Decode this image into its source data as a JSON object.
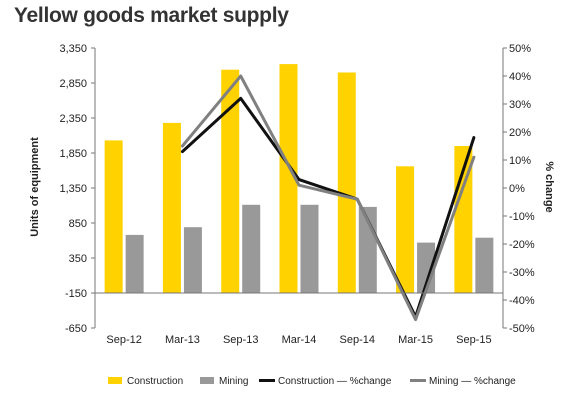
{
  "chart_data": {
    "type": "bar",
    "title": "Yellow goods market supply",
    "categories": [
      "Sep-12",
      "Mar-13",
      "Sep-13",
      "Mar-14",
      "Sep-14",
      "Mar-15",
      "Sep-15"
    ],
    "ylabel": "Units of equipment",
    "y2label": "% change",
    "ylim": [
      -650,
      3350
    ],
    "yticks": [
      "3,350",
      "2,850",
      "2,350",
      "1,850",
      "1,350",
      "850",
      "350",
      "-150",
      "-650"
    ],
    "y2lim": [
      -50,
      50
    ],
    "y2ticks": [
      "50%",
      "40%",
      "30%",
      "20%",
      "10%",
      "0%",
      "-10%",
      "-20%",
      "-30%",
      "-40%",
      "-50%"
    ],
    "grid": false,
    "legend_position": "bottom",
    "series": [
      {
        "name": "Construction",
        "kind": "bar",
        "axis": "left",
        "color": "#FFD200",
        "values": [
          2030,
          2280,
          3040,
          3120,
          3000,
          1660,
          1950
        ]
      },
      {
        "name": "Mining",
        "kind": "bar",
        "axis": "left",
        "color": "#999999",
        "values": [
          680,
          790,
          1110,
          1110,
          1080,
          570,
          640
        ]
      },
      {
        "name": "Construction — %change",
        "kind": "line",
        "axis": "right",
        "color": "#111111",
        "values": [
          null,
          13,
          32,
          3,
          -4,
          -46,
          18
        ]
      },
      {
        "name": "Mining — %change",
        "kind": "line",
        "axis": "right",
        "color": "#808080",
        "values": [
          null,
          15,
          40,
          1,
          -4,
          -47,
          11
        ]
      }
    ]
  }
}
